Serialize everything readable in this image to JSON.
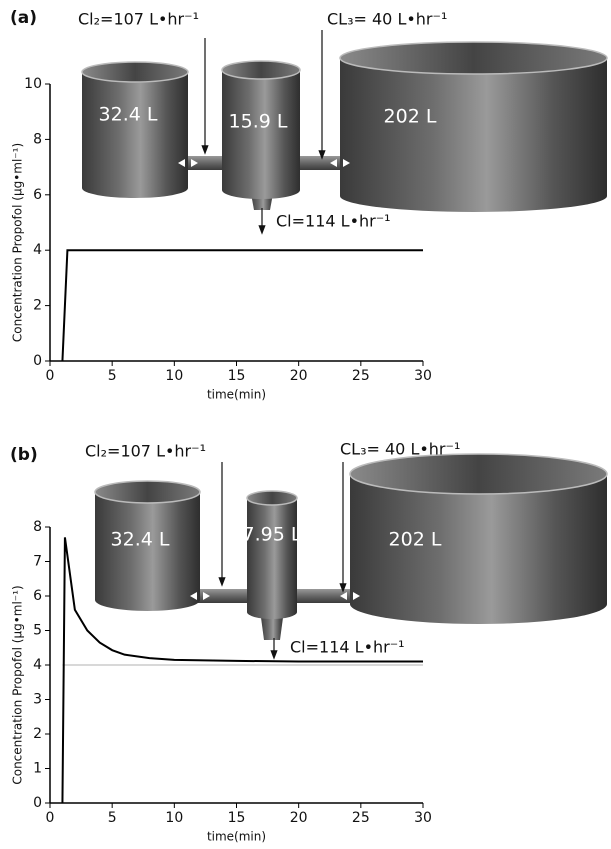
{
  "chart_data": [
    {
      "type": "line",
      "panel_label": "(a)",
      "x": [
        1,
        1.4,
        30
      ],
      "series": [
        {
          "color": "#000000",
          "values": [
            0,
            4,
            4
          ]
        }
      ],
      "xlim": [
        0,
        30
      ],
      "xticks": [
        0,
        5,
        10,
        15,
        20,
        25,
        30
      ],
      "ylim": [
        0,
        10
      ],
      "yticks": [
        0,
        2,
        4,
        6,
        8,
        10
      ],
      "xlabel": "time(min)",
      "ylabel": "Concentration Propofol (µg•ml⁻¹)",
      "compartments": [
        "32.4 L",
        "15.9 L",
        "202 L"
      ],
      "clearances": [
        "Cl₂=107 L•hr⁻¹",
        "CL₃= 40 L•hr⁻¹",
        "Cl=114 L•hr⁻¹"
      ]
    },
    {
      "type": "line",
      "panel_label": "(b)",
      "x": [
        1,
        1.2,
        2,
        3,
        4,
        5,
        6,
        8,
        10,
        15,
        20,
        30
      ],
      "series": [
        {
          "color": "#000000",
          "values": [
            0,
            7.7,
            5.6,
            5.0,
            4.65,
            4.43,
            4.3,
            4.2,
            4.15,
            4.12,
            4.1,
            4.1
          ]
        },
        {
          "color": "#cccccc",
          "values": [
            4,
            4,
            4,
            4,
            4,
            4,
            4,
            4,
            4,
            4,
            4,
            4
          ]
        }
      ],
      "xlim": [
        0,
        30
      ],
      "xticks": [
        0,
        5,
        10,
        15,
        20,
        25,
        30
      ],
      "ylim": [
        0,
        8
      ],
      "yticks": [
        0,
        1,
        2,
        3,
        4,
        5,
        6,
        7,
        8
      ],
      "xlabel": "time(min)",
      "ylabel": "Concentration Propofol (µg•ml⁻¹)",
      "compartments": [
        "32.4 L",
        "7.95 L",
        "202 L"
      ],
      "clearances": [
        "Cl₂=107 L•hr⁻¹",
        "CL₃= 40 L•hr⁻¹",
        "Cl=114 L•hr⁻¹"
      ]
    }
  ]
}
